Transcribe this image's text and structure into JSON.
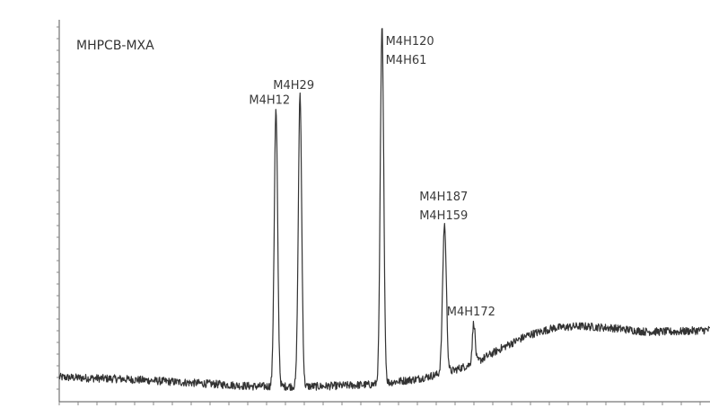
{
  "chart_data": {
    "type": "line",
    "title": "MHPCB-MXA",
    "xlabel": "",
    "ylabel": "",
    "xlim": [
      0,
      100
    ],
    "ylim": [
      0,
      100
    ],
    "grid": false,
    "line_color": "#333333",
    "baseline": [
      [
        0,
        4
      ],
      [
        10,
        3.5
      ],
      [
        20,
        2.5
      ],
      [
        30,
        1.5
      ],
      [
        40,
        1.5
      ],
      [
        48,
        2
      ],
      [
        55,
        3.5
      ],
      [
        60,
        5.5
      ],
      [
        64,
        8
      ],
      [
        68,
        12
      ],
      [
        72,
        15.5
      ],
      [
        76,
        17.5
      ],
      [
        80,
        18
      ],
      [
        85,
        17.5
      ],
      [
        90,
        16.5
      ],
      [
        95,
        16.5
      ],
      [
        100,
        17
      ]
    ],
    "peaks": [
      {
        "x": 33.3,
        "y": 77,
        "width": 0.55,
        "labels": [
          "M4H12"
        ]
      },
      {
        "x": 37.0,
        "y": 81,
        "width": 0.55,
        "labels": [
          "M4H29"
        ]
      },
      {
        "x": 49.6,
        "y": 100,
        "width": 0.55,
        "labels": [
          "M4H120",
          "M4H61"
        ]
      },
      {
        "x": 59.2,
        "y": 46,
        "width": 0.6,
        "labels": [
          "M4H187",
          "M4H159"
        ]
      },
      {
        "x": 63.7,
        "y": 19,
        "width": 0.45,
        "labels": [
          "M4H172"
        ]
      }
    ]
  }
}
